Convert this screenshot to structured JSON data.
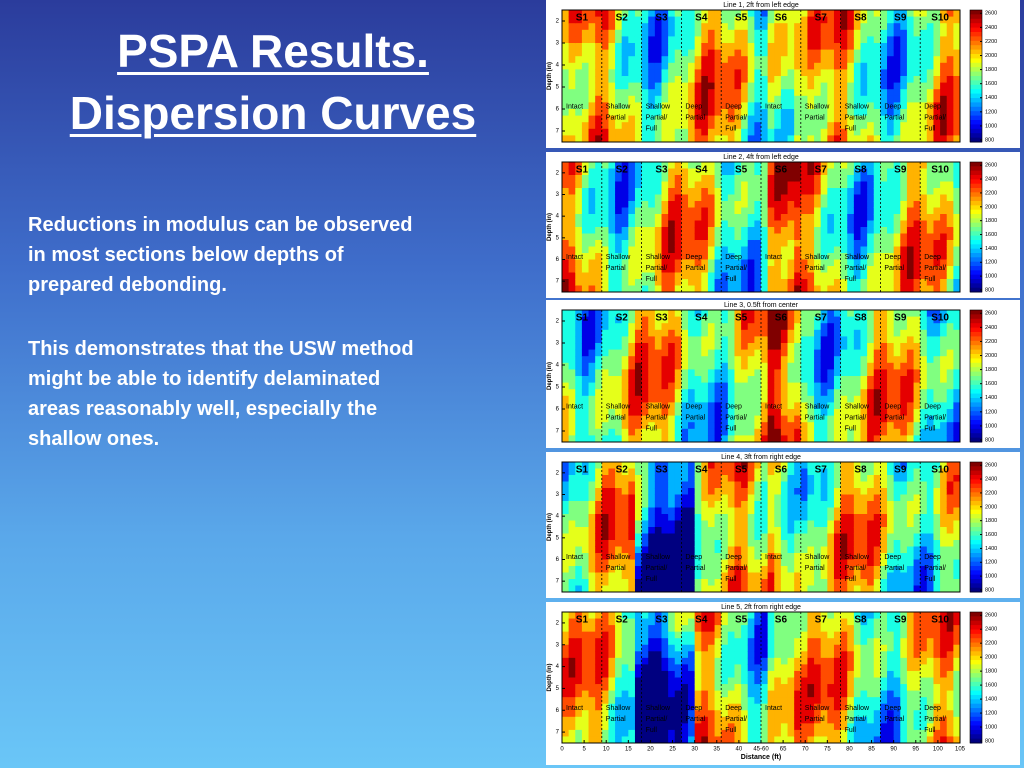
{
  "title": {
    "line1": "PSPA Results.",
    "line2": "Dispersion Curves"
  },
  "body": {
    "paragraph1": [
      "Reductions in modulus can be observed",
      "in most sections below depths of",
      "prepared debonding."
    ],
    "paragraph2": [
      "This demonstrates that the USW method",
      "might be able to identify delaminated",
      "areas reasonably well, especially the",
      "shallow ones."
    ]
  },
  "plots": {
    "panels": [
      {
        "title": "Line 1, 2ft from left edge"
      },
      {
        "title": "Line 2, 4ft from left edge"
      },
      {
        "title": "Line 3, 0.5ft from center"
      },
      {
        "title": "Line 4, 3ft from right edge"
      },
      {
        "title": "Line 5, 2ft from right edge"
      }
    ],
    "sections": [
      "S1",
      "S2",
      "S3",
      "S4",
      "S5",
      "S6",
      "S7",
      "S8",
      "S9",
      "S10"
    ],
    "conditions": [
      [
        "Intact"
      ],
      [
        "Shallow",
        "Partial"
      ],
      [
        "Shallow",
        "Partial/",
        "Full"
      ],
      [
        "Deep",
        "Partial"
      ],
      [
        "Deep",
        "Partial/",
        "Full"
      ],
      [
        "Intact"
      ],
      [
        "Shallow",
        "Partial"
      ],
      [
        "Shallow",
        "Partial/",
        "Full"
      ],
      [
        "Deep",
        "Partial"
      ],
      [
        "Deep",
        "Partial/",
        "Full"
      ]
    ],
    "y_label": "Depth (in)",
    "y_ticks": [
      2,
      3,
      4,
      5,
      6,
      7
    ],
    "colorbar_ticks": [
      800,
      1000,
      1200,
      1400,
      1600,
      1800,
      2000,
      2200,
      2400,
      2600
    ],
    "x_label": "Distance (ft)",
    "x_ticks": [
      0,
      5,
      10,
      15,
      20,
      25,
      30,
      35,
      40,
      "45-60",
      65,
      70,
      75,
      80,
      85,
      90,
      95,
      100,
      105
    ]
  }
}
